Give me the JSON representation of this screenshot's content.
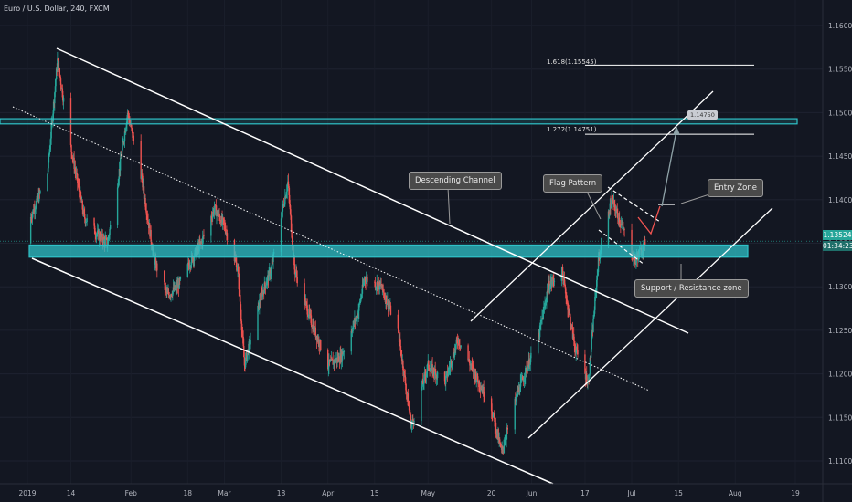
{
  "header": {
    "title": "Euro / U.S. Dollar, 240, FXCM"
  },
  "price_axis": {
    "labels": [
      "1.16000",
      "1.15500",
      "1.15000",
      "1.14500",
      "1.14000",
      "1.13500",
      "1.13000",
      "1.12500",
      "1.12000",
      "1.11500",
      "1.11000"
    ],
    "current_price": "1.13524",
    "countdown": "01:34:23"
  },
  "time_axis": {
    "labels": [
      "2019",
      "14",
      "Feb",
      "18",
      "Mar",
      "18",
      "Apr",
      "15",
      "May",
      "20",
      "Jun",
      "17",
      "Jul",
      "15",
      "Aug",
      "19"
    ]
  },
  "annotations": {
    "descending_channel": "Descending Channel",
    "flag_pattern": "Flag Pattern",
    "entry_zone": "Entry Zone",
    "support_resistance": "Support / Resistance zone",
    "fib_1618": "1.618(1.15545)",
    "fib_1272": "1.272(1.14751)",
    "target": "1.14750"
  },
  "colors": {
    "background": "#131722",
    "up": "#26a69a",
    "down": "#ef5350",
    "zone": "#2fc2c8",
    "lines": "#ffffff"
  },
  "chart_data": {
    "type": "candlestick",
    "symbol": "EURUSD",
    "timeframe": "240",
    "ylim": [
      1.105,
      1.1625
    ],
    "current_price": 1.13524,
    "zones": [
      {
        "name": "Support / Resistance zone",
        "low": 1.1334,
        "high": 1.1348
      },
      {
        "name": "upper zone",
        "low": 1.1487,
        "high": 1.1493
      }
    ],
    "fib_levels": [
      {
        "ratio": 1.618,
        "price": 1.15545
      },
      {
        "ratio": 1.272,
        "price": 1.14751
      }
    ],
    "target_price": 1.1475,
    "trend": [
      [
        "2019-01-02",
        1.138
      ],
      [
        "2019-01-07",
        1.143
      ],
      [
        "2019-01-10",
        1.156
      ],
      [
        "2019-01-14",
        1.146
      ],
      [
        "2019-01-18",
        1.138
      ],
      [
        "2019-01-22",
        1.136
      ],
      [
        "2019-01-25",
        1.135
      ],
      [
        "2019-01-28",
        1.142
      ],
      [
        "2019-01-31",
        1.15
      ],
      [
        "2019-02-04",
        1.143
      ],
      [
        "2019-02-08",
        1.133
      ],
      [
        "2019-02-12",
        1.129
      ],
      [
        "2019-02-15",
        1.13
      ],
      [
        "2019-02-19",
        1.133
      ],
      [
        "2019-02-22",
        1.135
      ],
      [
        "2019-02-26",
        1.139
      ],
      [
        "2019-03-01",
        1.137
      ],
      [
        "2019-03-05",
        1.132
      ],
      [
        "2019-03-07",
        1.121
      ],
      [
        "2019-03-12",
        1.129
      ],
      [
        "2019-03-15",
        1.132
      ],
      [
        "2019-03-20",
        1.142
      ],
      [
        "2019-03-22",
        1.132
      ],
      [
        "2019-03-27",
        1.126
      ],
      [
        "2019-04-01",
        1.121
      ],
      [
        "2019-04-05",
        1.122
      ],
      [
        "2019-04-10",
        1.127
      ],
      [
        "2019-04-12",
        1.131
      ],
      [
        "2019-04-17",
        1.13
      ],
      [
        "2019-04-22",
        1.125
      ],
      [
        "2019-04-26",
        1.114
      ],
      [
        "2019-05-01",
        1.121
      ],
      [
        "2019-05-06",
        1.119
      ],
      [
        "2019-05-10",
        1.124
      ],
      [
        "2019-05-15",
        1.12
      ],
      [
        "2019-05-20",
        1.116
      ],
      [
        "2019-05-23",
        1.111
      ],
      [
        "2019-05-28",
        1.118
      ],
      [
        "2019-06-03",
        1.124
      ],
      [
        "2019-06-06",
        1.13
      ],
      [
        "2019-06-10",
        1.132
      ],
      [
        "2019-06-14",
        1.123
      ],
      [
        "2019-06-18",
        1.119
      ],
      [
        "2019-06-21",
        1.133
      ],
      [
        "2019-06-25",
        1.14
      ],
      [
        "2019-06-28",
        1.137
      ],
      [
        "2019-07-02",
        1.133
      ],
      [
        "2019-07-05",
        1.135
      ]
    ]
  }
}
